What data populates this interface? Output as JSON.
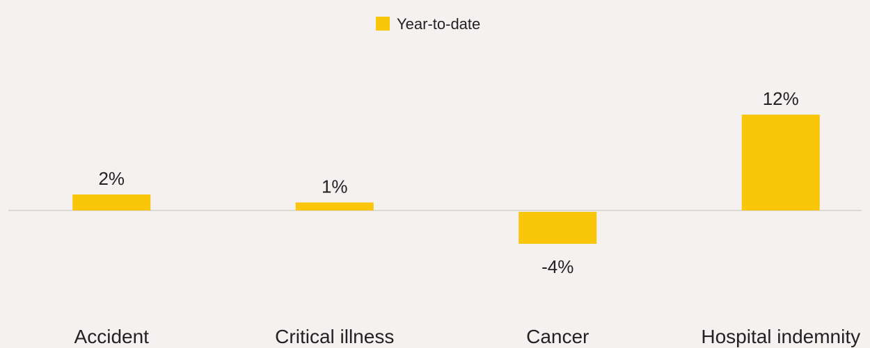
{
  "chart_data": {
    "type": "bar",
    "categories": [
      "Accident",
      "Critical illness",
      "Cancer",
      "Hospital indemnity"
    ],
    "series": [
      {
        "name": "Year-to-date",
        "values": [
          2,
          1,
          -4,
          12
        ],
        "labels": [
          "2%",
          "1%",
          "-4%",
          "12%"
        ]
      }
    ],
    "ylim": [
      -8,
      14
    ],
    "grid": false,
    "legend_position": "top-center",
    "colors": {
      "bar": "#F9C609",
      "axis": "#DCD8D6",
      "background": "#F5F1F0",
      "text": "#222222"
    }
  }
}
